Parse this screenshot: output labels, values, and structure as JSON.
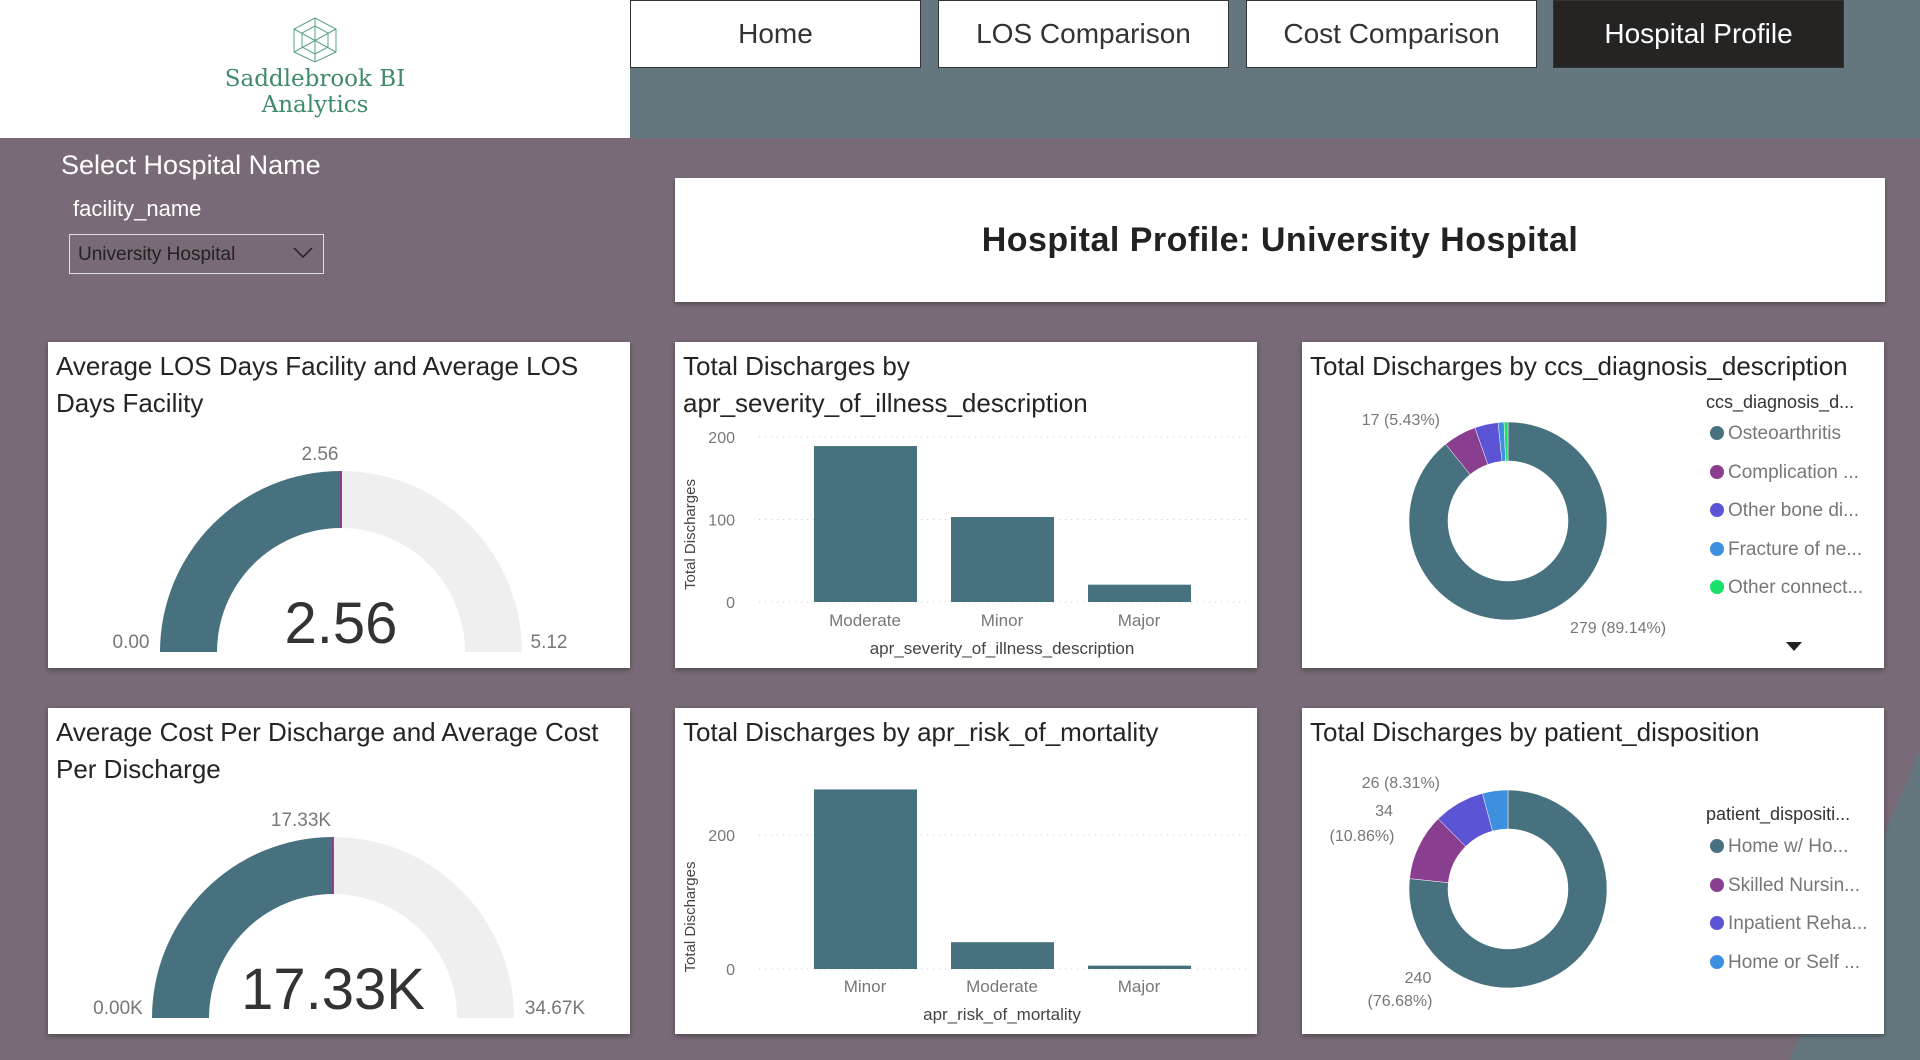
{
  "logo": {
    "line1": "Saddlebrook BI",
    "line2": "Analytics"
  },
  "nav": [
    {
      "label": "Home"
    },
    {
      "label": "LOS Comparison"
    },
    {
      "label": "Cost Comparison"
    },
    {
      "label": "Hospital Profile",
      "active": true
    }
  ],
  "slicer": {
    "title": "Select Hospital Name",
    "field": "facility_name",
    "value": "University Hospital"
  },
  "page_title": "Hospital Profile: University Hospital",
  "colors": {
    "primary": "#47717e",
    "purple": "#8a3e8f",
    "violet": "#5b55d6",
    "blue": "#3d8fe0",
    "green": "#19e06a",
    "gauge_bg": "#f0efef",
    "nav_active": "#252423",
    "background": "#786a76",
    "accent_bg": "#64777f"
  },
  "gauges": [
    {
      "title": "Average LOS Days Facility and Average LOS Days Facility",
      "value": 2.56,
      "min": 0,
      "max": 5.12,
      "value_label": "2.56",
      "target_label": "2.56",
      "min_label": "0.00",
      "max_label": "5.12"
    },
    {
      "title": "Average Cost Per Discharge and Average Cost Per Discharge",
      "value": 17330,
      "min": 0,
      "max": 34670,
      "value_label": "17.33K",
      "target_label": "17.33K",
      "min_label": "0.00K",
      "max_label": "34.67K"
    }
  ],
  "chart_data": [
    {
      "type": "bar",
      "title": "Total Discharges by apr_severity_of_illness_description",
      "categories": [
        "Moderate",
        "Minor",
        "Major"
      ],
      "values": [
        189,
        103,
        21
      ],
      "xlabel": "apr_severity_of_illness_description",
      "ylabel": "Total Discharges",
      "yticks": [
        0,
        100,
        200
      ],
      "ylim": [
        0,
        200
      ],
      "grid": true
    },
    {
      "type": "bar",
      "title": "Total Discharges by apr_risk_of_mortality",
      "categories": [
        "Minor",
        "Moderate",
        "Major"
      ],
      "values": [
        268,
        40,
        5
      ],
      "xlabel": "apr_risk_of_mortality",
      "ylabel": "Total Discharges",
      "yticks": [
        0,
        200
      ],
      "ylim": [
        0,
        268
      ],
      "grid": true
    },
    {
      "type": "pie",
      "donut": true,
      "title": "Total Discharges by ccs_diagnosis_description",
      "legend_title": "ccs_diagnosis_d...",
      "legend_position": "right",
      "slices": [
        {
          "label": "Osteoarthritis",
          "value": 279,
          "color": "#47717e"
        },
        {
          "label": "Complication ...",
          "value": 17,
          "color": "#8a3e8f"
        },
        {
          "label": "Other bone di...",
          "value": 12,
          "color": "#5b55d6"
        },
        {
          "label": "Fracture of ne...",
          "value": 3,
          "color": "#3d8fe0"
        },
        {
          "label": "Other connect...",
          "value": 2,
          "color": "#19e06a"
        }
      ],
      "data_labels": [
        "279 (89.14%)",
        "17 (5.43%)"
      ]
    },
    {
      "type": "pie",
      "donut": true,
      "title": "Total Discharges by patient_disposition",
      "legend_title": "patient_dispositi...",
      "legend_position": "right",
      "slices": [
        {
          "label": "Home w/ Ho...",
          "value": 240,
          "color": "#47717e"
        },
        {
          "label": "Skilled Nursin...",
          "value": 34,
          "color": "#8a3e8f"
        },
        {
          "label": "Inpatient Reha...",
          "value": 26,
          "color": "#5b55d6"
        },
        {
          "label": "Home or Self ...",
          "value": 13,
          "color": "#3d8fe0"
        }
      ],
      "data_labels": [
        "240",
        "(76.68%)",
        "34",
        "(10.86%)",
        "26 (8.31%)"
      ]
    }
  ]
}
